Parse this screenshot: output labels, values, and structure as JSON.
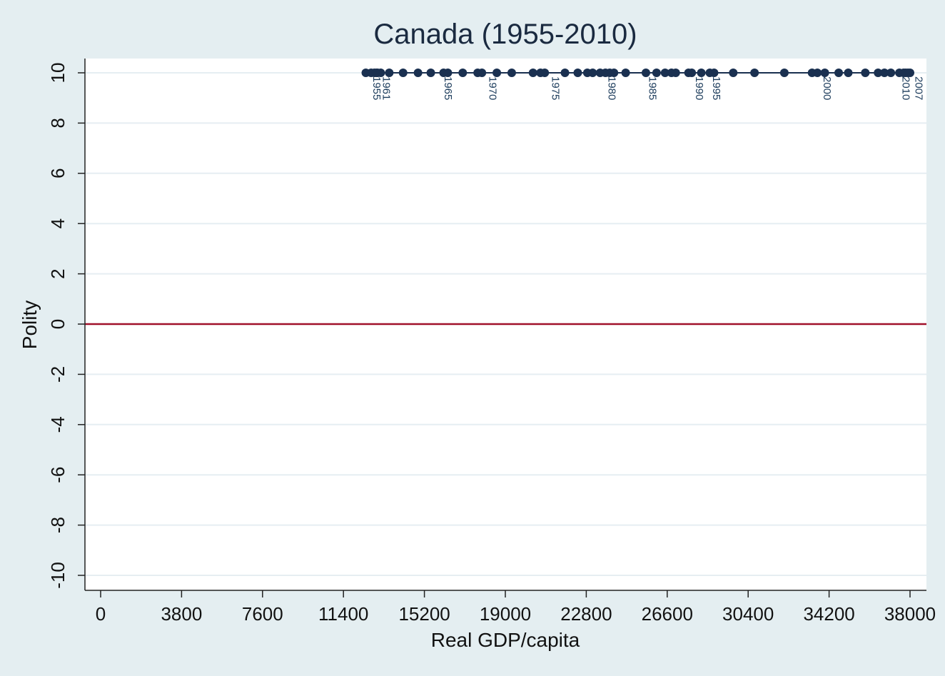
{
  "chart_data": {
    "type": "scatter",
    "title": "Canada (1955-2010)",
    "xlabel": "Real GDP/capita",
    "ylabel": "Polity",
    "xlim": [
      0,
      38000
    ],
    "ylim": [
      -10,
      10
    ],
    "x_ticks": [
      0,
      3800,
      7600,
      11400,
      15200,
      19000,
      22800,
      26600,
      30400,
      34200,
      38000
    ],
    "y_ticks": [
      -10,
      -8,
      -6,
      -4,
      -2,
      0,
      2,
      4,
      6,
      8,
      10
    ],
    "reference_line": {
      "y": 0,
      "color": "#a0102a"
    },
    "connected": true,
    "grid": "horizontal",
    "marker_color": "#1a3050",
    "line_color": "#1a3050",
    "points": [
      {
        "x": 12450,
        "y": 10
      },
      {
        "x": 12700,
        "y": 10
      },
      {
        "x": 12850,
        "y": 10
      },
      {
        "x": 12950,
        "y": 10
      },
      {
        "x": 13000,
        "y": 10
      },
      {
        "x": 13150,
        "y": 10
      },
      {
        "x": 13550,
        "y": 10
      },
      {
        "x": 14200,
        "y": 10
      },
      {
        "x": 14900,
        "y": 10
      },
      {
        "x": 15500,
        "y": 10
      },
      {
        "x": 16100,
        "y": 10
      },
      {
        "x": 16300,
        "y": 10
      },
      {
        "x": 17000,
        "y": 10
      },
      {
        "x": 17700,
        "y": 10
      },
      {
        "x": 17900,
        "y": 10
      },
      {
        "x": 18600,
        "y": 10
      },
      {
        "x": 19300,
        "y": 10
      },
      {
        "x": 20300,
        "y": 10
      },
      {
        "x": 20650,
        "y": 10
      },
      {
        "x": 20850,
        "y": 10
      },
      {
        "x": 21800,
        "y": 10
      },
      {
        "x": 22400,
        "y": 10
      },
      {
        "x": 22850,
        "y": 10
      },
      {
        "x": 23100,
        "y": 10
      },
      {
        "x": 23450,
        "y": 10
      },
      {
        "x": 23700,
        "y": 10
      },
      {
        "x": 23900,
        "y": 10
      },
      {
        "x": 24100,
        "y": 10
      },
      {
        "x": 24650,
        "y": 10
      },
      {
        "x": 25600,
        "y": 10
      },
      {
        "x": 26100,
        "y": 10
      },
      {
        "x": 26500,
        "y": 10
      },
      {
        "x": 26800,
        "y": 10
      },
      {
        "x": 27000,
        "y": 10
      },
      {
        "x": 27600,
        "y": 10
      },
      {
        "x": 27750,
        "y": 10
      },
      {
        "x": 28200,
        "y": 10
      },
      {
        "x": 28600,
        "y": 10
      },
      {
        "x": 28800,
        "y": 10
      },
      {
        "x": 29700,
        "y": 10
      },
      {
        "x": 30700,
        "y": 10
      },
      {
        "x": 32100,
        "y": 10
      },
      {
        "x": 33400,
        "y": 10
      },
      {
        "x": 33650,
        "y": 10
      },
      {
        "x": 34000,
        "y": 10
      },
      {
        "x": 34650,
        "y": 10
      },
      {
        "x": 35100,
        "y": 10
      },
      {
        "x": 35900,
        "y": 10
      },
      {
        "x": 36500,
        "y": 10
      },
      {
        "x": 36800,
        "y": 10
      },
      {
        "x": 37100,
        "y": 10
      },
      {
        "x": 37500,
        "y": 10
      },
      {
        "x": 37700,
        "y": 10
      },
      {
        "x": 37800,
        "y": 10
      },
      {
        "x": 38000,
        "y": 10
      },
      {
        "x": 37900,
        "y": 10
      }
    ],
    "year_labels": [
      {
        "label": "1955",
        "x": 12800,
        "y": 10
      },
      {
        "label": "1961",
        "x": 13250,
        "y": 10
      },
      {
        "label": "1965",
        "x": 16150,
        "y": 10
      },
      {
        "label": "1970",
        "x": 18250,
        "y": 10
      },
      {
        "label": "1975",
        "x": 21200,
        "y": 10
      },
      {
        "x": 23850,
        "label": "1980",
        "y": 10
      },
      {
        "label": "1985",
        "x": 25750,
        "y": 10
      },
      {
        "label": "1990",
        "x": 27950,
        "y": 10
      },
      {
        "label": "1995",
        "x": 28750,
        "y": 10
      },
      {
        "label": "2000",
        "x": 33950,
        "y": 10
      },
      {
        "label": "2010",
        "x": 37650,
        "y": 10
      },
      {
        "label": "2007",
        "x": 38250,
        "y": 10
      }
    ]
  }
}
